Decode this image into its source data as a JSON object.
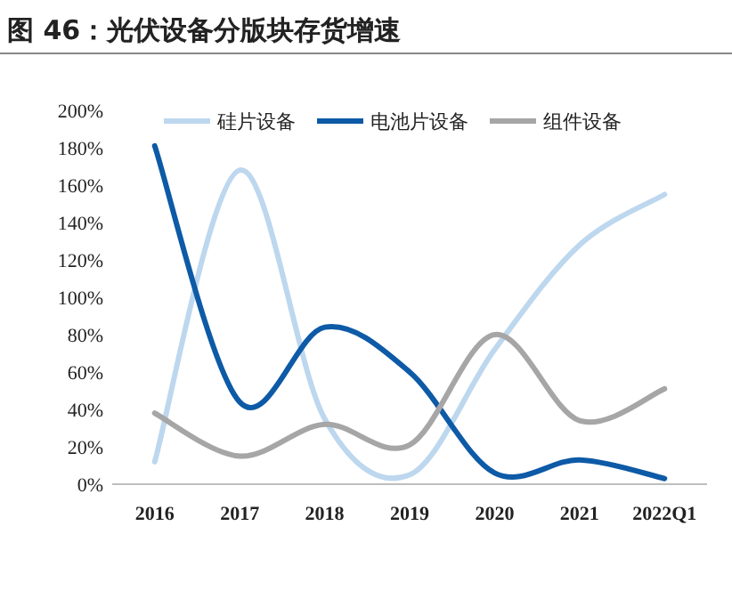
{
  "chart_data": {
    "type": "line",
    "title": "图 46：光伏设备分版块存货增速",
    "categories": [
      "2016",
      "2017",
      "2018",
      "2019",
      "2020",
      "2021",
      "2022Q1"
    ],
    "series": [
      {
        "name": "硅片设备",
        "color": "#bdd7ee",
        "values": [
          12,
          168,
          35,
          5,
          72,
          128,
          155
        ]
      },
      {
        "name": "电池片设备",
        "color": "#0d5aa7",
        "values": [
          181,
          44,
          84,
          60,
          6,
          13,
          3
        ]
      },
      {
        "name": "组件设备",
        "color": "#a6a6a6",
        "values": [
          38,
          15,
          32,
          21,
          80,
          34,
          51
        ]
      }
    ],
    "ylim": [
      0,
      200
    ],
    "yticks": [
      {
        "value": 0,
        "label": "0%"
      },
      {
        "value": 20,
        "label": "20%"
      },
      {
        "value": 40,
        "label": "40%"
      },
      {
        "value": 60,
        "label": "60%"
      },
      {
        "value": 80,
        "label": "80%"
      },
      {
        "value": 100,
        "label": "100%"
      },
      {
        "value": 120,
        "label": "120%"
      },
      {
        "value": 140,
        "label": "140%"
      },
      {
        "value": 160,
        "label": "160%"
      },
      {
        "value": 180,
        "label": "180%"
      },
      {
        "value": 200,
        "label": "200%"
      }
    ],
    "grid": false,
    "legend": "top",
    "marker": "none",
    "line_style": "solid"
  }
}
